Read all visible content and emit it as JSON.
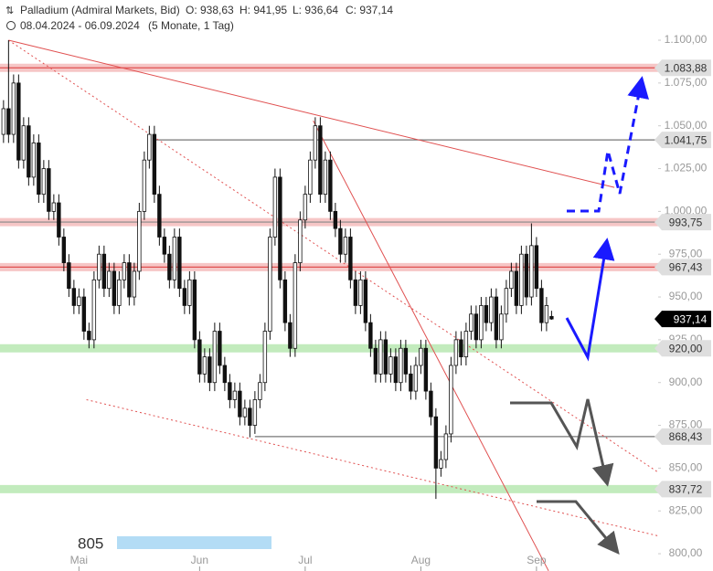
{
  "header": {
    "symbol": "Palladium (Admiral Markets, Bid)",
    "open": "O: 938,63",
    "high": "H: 941,95",
    "low": "L: 936,64",
    "close": "C: 937,14",
    "range": "08.04.2024 - 06.09.2024",
    "span": "(5 Monate, 1 Tag)"
  },
  "chart_data": {
    "type": "candlestick",
    "xlim": [
      -0.7,
      130.2
    ],
    "ylim": [
      789.9,
      1123.5
    ],
    "xticks": [
      {
        "value": 15,
        "label": "Mai"
      },
      {
        "value": 39,
        "label": "Jun"
      },
      {
        "value": 60,
        "label": "Jul"
      },
      {
        "value": 83,
        "label": "Aug"
      },
      {
        "value": 106,
        "label": "Sep"
      }
    ],
    "yticks": [
      {
        "value": 1100,
        "label": "1.100,00"
      },
      {
        "value": 1075,
        "label": "1.075,00"
      },
      {
        "value": 1050,
        "label": "1.050,00"
      },
      {
        "value": 1025,
        "label": "1.025,00"
      },
      {
        "value": 1000,
        "label": "1.000,00"
      },
      {
        "value": 975,
        "label": "975,00"
      },
      {
        "value": 950,
        "label": "950,00"
      },
      {
        "value": 925,
        "label": "925,00"
      },
      {
        "value": 900,
        "label": "900,00"
      },
      {
        "value": 875,
        "label": "875,00"
      },
      {
        "value": 850,
        "label": "850,00"
      },
      {
        "value": 825,
        "label": "825,00"
      },
      {
        "value": 800,
        "label": "800,00"
      }
    ],
    "grid": false,
    "candles": [
      [
        1045,
        1065,
        1040,
        1060
      ],
      [
        1060,
        1100,
        1040,
        1045
      ],
      [
        1045,
        1080,
        1040,
        1075
      ],
      [
        1075,
        1080,
        1025,
        1030
      ],
      [
        1030,
        1055,
        1025,
        1050
      ],
      [
        1050,
        1055,
        1015,
        1020
      ],
      [
        1020,
        1045,
        1015,
        1040
      ],
      [
        1040,
        1045,
        1005,
        1010
      ],
      [
        1010,
        1030,
        1005,
        1025
      ],
      [
        1025,
        1030,
        995,
        1000
      ],
      [
        1000,
        1010,
        995,
        1005
      ],
      [
        1005,
        1010,
        980,
        985
      ],
      [
        985,
        990,
        965,
        970
      ],
      [
        970,
        975,
        950,
        955
      ],
      [
        955,
        960,
        940,
        945
      ],
      [
        945,
        955,
        940,
        950
      ],
      [
        950,
        955,
        925,
        930
      ],
      [
        930,
        935,
        920,
        925
      ],
      [
        925,
        965,
        920,
        960
      ],
      [
        960,
        980,
        955,
        975
      ],
      [
        975,
        980,
        950,
        955
      ],
      [
        955,
        970,
        950,
        965
      ],
      [
        965,
        970,
        940,
        945
      ],
      [
        945,
        965,
        940,
        960
      ],
      [
        960,
        975,
        955,
        970
      ],
      [
        970,
        975,
        945,
        950
      ],
      [
        950,
        970,
        945,
        965
      ],
      [
        965,
        1005,
        960,
        1000
      ],
      [
        1000,
        1035,
        995,
        1030
      ],
      [
        1030,
        1050,
        1025,
        1045
      ],
      [
        1045,
        1050,
        1005,
        1010
      ],
      [
        1010,
        1015,
        980,
        985
      ],
      [
        985,
        990,
        970,
        975
      ],
      [
        975,
        980,
        955,
        960
      ],
      [
        960,
        990,
        955,
        985
      ],
      [
        985,
        990,
        950,
        955
      ],
      [
        955,
        960,
        940,
        945
      ],
      [
        945,
        965,
        940,
        960
      ],
      [
        960,
        965,
        920,
        925
      ],
      [
        925,
        930,
        900,
        905
      ],
      [
        905,
        920,
        900,
        915
      ],
      [
        915,
        920,
        895,
        900
      ],
      [
        900,
        935,
        895,
        930
      ],
      [
        930,
        935,
        905,
        910
      ],
      [
        910,
        915,
        895,
        900
      ],
      [
        900,
        905,
        885,
        890
      ],
      [
        890,
        900,
        885,
        895
      ],
      [
        895,
        900,
        875,
        880
      ],
      [
        880,
        890,
        875,
        885
      ],
      [
        885,
        890,
        868,
        875
      ],
      [
        875,
        895,
        870,
        890
      ],
      [
        890,
        905,
        885,
        900
      ],
      [
        900,
        935,
        895,
        930
      ],
      [
        930,
        990,
        925,
        985
      ],
      [
        985,
        1025,
        980,
        1020
      ],
      [
        1020,
        1025,
        955,
        960
      ],
      [
        960,
        965,
        930,
        935
      ],
      [
        935,
        940,
        915,
        920
      ],
      [
        920,
        975,
        915,
        970
      ],
      [
        970,
        1000,
        965,
        995
      ],
      [
        995,
        1015,
        990,
        1010
      ],
      [
        1010,
        1035,
        1005,
        1030
      ],
      [
        1030,
        1055,
        1025,
        1050
      ],
      [
        1050,
        1055,
        1005,
        1010
      ],
      [
        1010,
        1035,
        1005,
        1030
      ],
      [
        1030,
        1035,
        995,
        1000
      ],
      [
        1000,
        1005,
        985,
        990
      ],
      [
        990,
        995,
        970,
        975
      ],
      [
        975,
        990,
        970,
        985
      ],
      [
        985,
        990,
        955,
        960
      ],
      [
        960,
        965,
        940,
        945
      ],
      [
        945,
        965,
        940,
        960
      ],
      [
        960,
        965,
        930,
        935
      ],
      [
        935,
        940,
        915,
        920
      ],
      [
        920,
        925,
        900,
        905
      ],
      [
        905,
        930,
        900,
        925
      ],
      [
        925,
        930,
        900,
        905
      ],
      [
        905,
        920,
        900,
        915
      ],
      [
        915,
        920,
        895,
        900
      ],
      [
        900,
        925,
        895,
        920
      ],
      [
        920,
        925,
        900,
        905
      ],
      [
        905,
        910,
        890,
        895
      ],
      [
        895,
        915,
        890,
        910
      ],
      [
        910,
        925,
        905,
        920
      ],
      [
        920,
        925,
        890,
        895
      ],
      [
        895,
        900,
        875,
        880
      ],
      [
        880,
        885,
        832,
        850
      ],
      [
        850,
        860,
        845,
        855
      ],
      [
        855,
        875,
        850,
        870
      ],
      [
        870,
        915,
        865,
        910
      ],
      [
        910,
        930,
        905,
        925
      ],
      [
        925,
        930,
        910,
        915
      ],
      [
        915,
        935,
        910,
        930
      ],
      [
        930,
        945,
        925,
        940
      ],
      [
        940,
        945,
        920,
        925
      ],
      [
        925,
        950,
        920,
        945
      ],
      [
        945,
        950,
        930,
        935
      ],
      [
        935,
        955,
        930,
        950
      ],
      [
        950,
        955,
        920,
        925
      ],
      [
        925,
        945,
        920,
        940
      ],
      [
        940,
        960,
        935,
        955
      ],
      [
        955,
        970,
        950,
        965
      ],
      [
        965,
        970,
        940,
        945
      ],
      [
        945,
        980,
        940,
        975
      ],
      [
        975,
        980,
        945,
        950
      ],
      [
        950,
        993,
        945,
        980
      ],
      [
        980,
        985,
        950,
        955
      ],
      [
        955,
        960,
        930,
        935
      ],
      [
        935,
        950,
        930,
        945
      ],
      [
        938.63,
        941.95,
        936.64,
        937.14
      ]
    ],
    "levels": [
      {
        "value": 1083.88,
        "label": "1.083,88",
        "color": "#e05050",
        "halo": "#f6c6c6"
      },
      {
        "value": 1041.75,
        "label": "1.041,75",
        "color": "#777777",
        "from": 30
      },
      {
        "value": 993.75,
        "label": "993,75",
        "color": "#888888",
        "halo": "#f6c6c6"
      },
      {
        "value": 967.43,
        "label": "967,43",
        "color": "#e05050",
        "halo": "#f6c6c6"
      },
      {
        "value": 920.0,
        "label": "920,00",
        "color": "#c2ebbd",
        "halo": "#c2ebbd"
      },
      {
        "value": 868.43,
        "label": "868,43",
        "color": "#777777",
        "from": 50
      },
      {
        "value": 837.72,
        "label": "837,72",
        "color": "#c2ebbd",
        "halo": "#c2ebbd"
      }
    ],
    "trendlines": [
      {
        "points": [
          [
            1,
            1100
          ],
          [
            121.5,
            1014
          ]
        ],
        "color": "#e05050",
        "dash": false
      },
      {
        "points": [
          [
            61.6,
            1053
          ],
          [
            108.4,
            790
          ]
        ],
        "color": "#e05050",
        "dash": false
      },
      {
        "points": [
          [
            1,
            1100
          ],
          [
            131,
            846
          ]
        ],
        "color": "#e05050",
        "dash": true
      },
      {
        "points": [
          [
            16.5,
            890
          ],
          [
            136.5,
            806
          ]
        ],
        "color": "#e05050",
        "dash": true
      }
    ],
    "last": {
      "value": 937.14,
      "label": "937,14"
    },
    "volume_label": "805"
  }
}
